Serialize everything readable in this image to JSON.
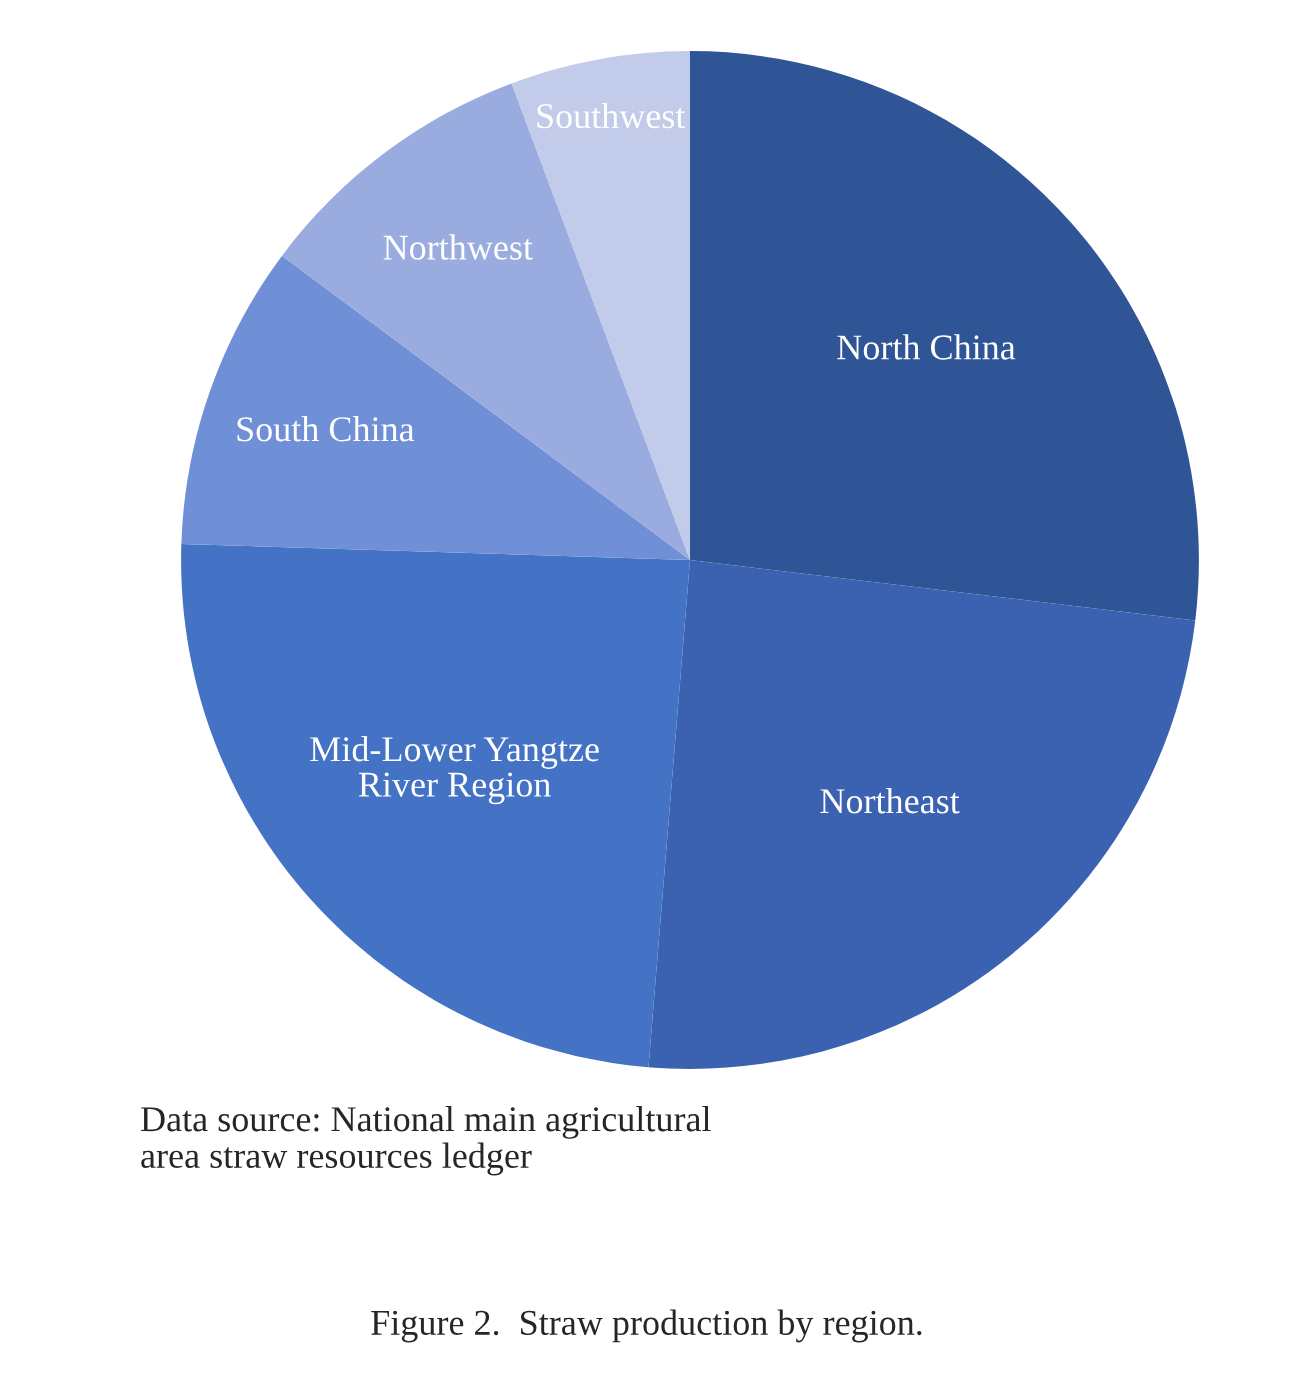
{
  "chart_data": {
    "type": "pie",
    "title": "Figure 2.  Straw production by region.",
    "categories": [
      "North China",
      "Northeast",
      "Mid-Lower Yangtze\nRiver Region",
      "South China",
      "Northwest",
      "Southwest"
    ],
    "values": [
      26.9,
      24.4,
      24.2,
      9.7,
      9.1,
      5.7
    ],
    "colors": [
      "#2f5597",
      "#3a62b0",
      "#4472c4",
      "#6f8fd6",
      "#9aacdf",
      "#c2cbe9"
    ],
    "annotations": [
      "Data source: National main agricultural\narea straw resources ledger"
    ]
  }
}
